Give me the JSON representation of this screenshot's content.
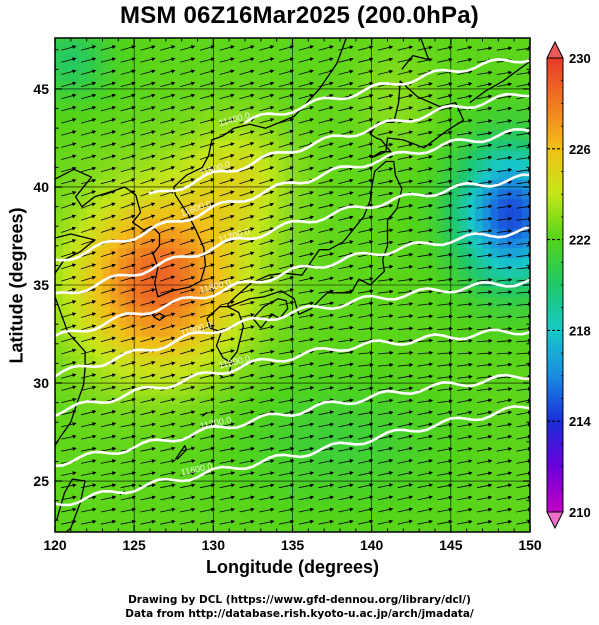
{
  "title": "MSM 06Z16Mar2025 (200.0hPa)",
  "x_axis_title": "Longitude (degrees)",
  "y_axis_title": "Latitude  (degrees)",
  "credit_line_1": "Drawing by DCL (https://www.gfd-dennou.org/library/dcl/)",
  "credit_line_2": "Data from http://database.rish.kyoto-u.ac.jp/arch/jmadata/",
  "chart_data": {
    "type": "heatmap",
    "xlim": [
      120,
      150
    ],
    "ylim": [
      22.4,
      47.6
    ],
    "x_ticks": [
      120,
      125,
      130,
      135,
      140,
      145,
      150
    ],
    "x_tick_labels": [
      "120",
      "125",
      "130",
      "135",
      "140",
      "145",
      "150"
    ],
    "y_ticks": [
      25,
      30,
      35,
      40,
      45
    ],
    "y_tick_labels": [
      "25",
      "30",
      "35",
      "40",
      "45"
    ],
    "grid": true,
    "colorbar": {
      "min": 210,
      "max": 230,
      "labels": [
        "230",
        "226",
        "222",
        "218",
        "214",
        "210"
      ],
      "label_values": [
        230,
        226,
        222,
        218,
        214,
        210
      ],
      "position": "right"
    },
    "height_contours": [
      {
        "label": "11600.0",
        "points": [
          [
            120,
            23.8
          ],
          [
            126,
            24.8
          ],
          [
            132,
            25.8
          ],
          [
            138,
            26.8
          ],
          [
            143,
            27.7
          ],
          [
            150,
            28.8
          ]
        ]
      },
      {
        "label": "11700.0",
        "points": [
          [
            120,
            25.9
          ],
          [
            126,
            26.9
          ],
          [
            132,
            28.0
          ],
          [
            138,
            29.0
          ],
          [
            143,
            29.7
          ],
          [
            150,
            30.4
          ]
        ]
      },
      {
        "label": "11800.0",
        "points": [
          [
            120,
            28.5
          ],
          [
            126,
            29.7
          ],
          [
            132,
            30.9
          ],
          [
            138,
            31.8
          ],
          [
            144,
            32.3
          ],
          [
            150,
            32.7
          ]
        ]
      },
      {
        "label": "11900.0",
        "points": [
          [
            120,
            30.4
          ],
          [
            125,
            31.5
          ],
          [
            130,
            32.7
          ],
          [
            135,
            33.6
          ],
          [
            140,
            34.3
          ],
          [
            145,
            34.8
          ],
          [
            150,
            35.2
          ]
        ]
      },
      {
        "label": "11800.0",
        "points": [
          [
            120,
            32.3
          ],
          [
            125,
            33.5
          ],
          [
            130,
            34.6
          ],
          [
            135,
            35.7
          ],
          [
            140,
            36.6
          ],
          [
            145,
            37.3
          ],
          [
            150,
            37.8
          ]
        ]
      },
      {
        "label": "11700.0",
        "points": [
          [
            120,
            34.4
          ],
          [
            125,
            35.6
          ],
          [
            130,
            36.9
          ],
          [
            135,
            38.1
          ],
          [
            140,
            39.1
          ],
          [
            145,
            39.9
          ],
          [
            150,
            40.5
          ]
        ]
      },
      {
        "label": "11600.0",
        "points": [
          [
            120,
            36.2
          ],
          [
            125,
            37.5
          ],
          [
            130,
            38.9
          ],
          [
            135,
            40.2
          ],
          [
            140,
            41.3
          ],
          [
            145,
            42.2
          ],
          [
            150,
            42.9
          ]
        ]
      },
      {
        "label": "11500.0",
        "points": [
          [
            126,
            39.5
          ],
          [
            130,
            40.6
          ],
          [
            135,
            41.9
          ],
          [
            140,
            43.0
          ],
          [
            145,
            44.0
          ],
          [
            150,
            44.8
          ]
        ]
      },
      {
        "label": "11400.0",
        "points": [
          [
            132,
            43.3
          ],
          [
            137,
            44.4
          ],
          [
            142,
            45.4
          ],
          [
            146,
            46.1
          ],
          [
            150,
            46.6
          ]
        ]
      }
    ],
    "contour_labels": [
      "11600.0",
      "11700.0",
      "11800.0",
      "11900.0",
      "11800.0",
      "11700.0",
      "11600.0",
      "11500.0",
      "11400.0"
    ],
    "warm_core_center": [
      126.5,
      35.5
    ],
    "cold_core_center": [
      148.5,
      38.5
    ]
  },
  "colors": {
    "background": "#ffffff",
    "frame": "#000000",
    "contour": "#ffffff",
    "vectors": "#000000"
  }
}
